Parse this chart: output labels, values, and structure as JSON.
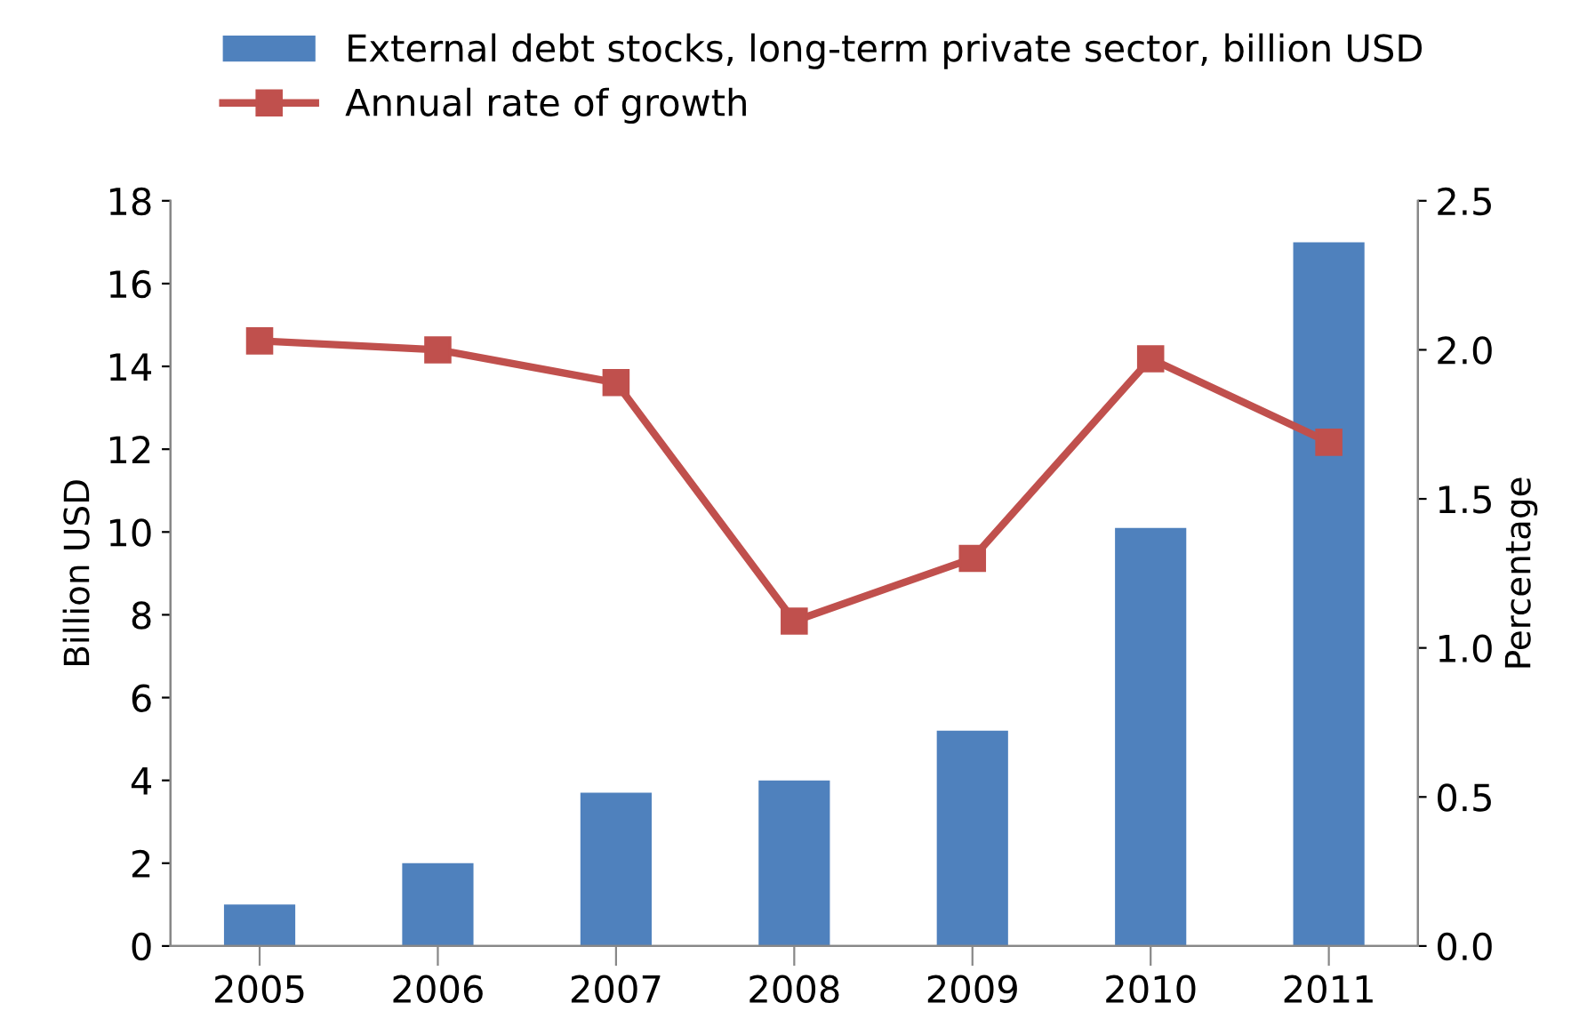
{
  "chart_data": {
    "type": "bar",
    "categories": [
      "2005",
      "2006",
      "2007",
      "2008",
      "2009",
      "2010",
      "2011"
    ],
    "ylabel": "Billion USD",
    "y2label": "Percentage",
    "ylim": [
      0,
      18
    ],
    "yticks": [
      0,
      2,
      4,
      6,
      8,
      10,
      12,
      14,
      16,
      18
    ],
    "y2lim": [
      0,
      2.5
    ],
    "y2ticks": [
      {
        "value": 0,
        "label": "0.0"
      },
      {
        "value": 0.5,
        "label": "0.5"
      },
      {
        "value": 1,
        "label": "1.0"
      },
      {
        "value": 1.5,
        "label": "1.5"
      },
      {
        "value": 2,
        "label": "2.0"
      },
      {
        "value": 2.5,
        "label": "2.5"
      }
    ],
    "legend": "top",
    "grid": false,
    "series": [
      {
        "name": "External debt stocks, long-term private sector, billion USD",
        "color": "#4f81bd",
        "values": [
          1.0,
          2.0,
          3.7,
          4.0,
          5.2,
          10.1,
          17.0
        ]
      },
      {
        "name": "Annual rate of growth",
        "color": "#c0504d",
        "type": "line",
        "axis": "y2",
        "marker": "square",
        "values": [
          2.03,
          2.0,
          1.89,
          1.09,
          1.3,
          1.97,
          1.69
        ]
      }
    ]
  }
}
